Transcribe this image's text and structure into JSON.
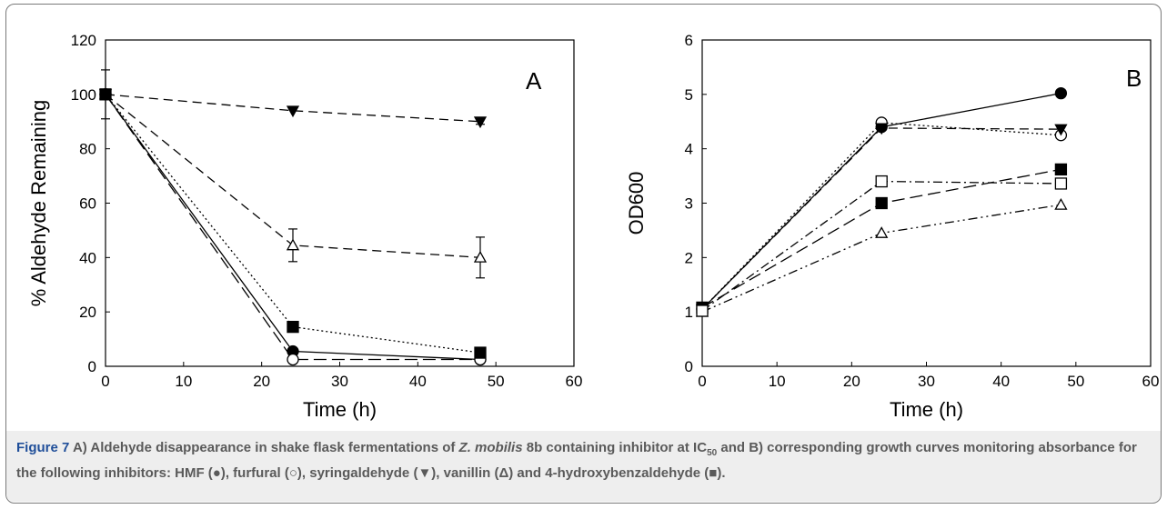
{
  "chart_data": [
    {
      "type": "line",
      "panel_label": "A",
      "xlabel": "Time (h)",
      "ylabel": "% Aldehyde Remaining",
      "xlim": [
        0,
        60
      ],
      "ylim": [
        0,
        120
      ],
      "xticks": [
        "0",
        "10",
        "20",
        "30",
        "40",
        "50",
        "60"
      ],
      "yticks": [
        "0",
        "20",
        "40",
        "60",
        "80",
        "100",
        "120"
      ],
      "grid": false,
      "x": [
        0,
        24,
        48
      ],
      "series": [
        {
          "marker": "filled-circle",
          "line": "solid",
          "values": [
            100,
            5.5,
            2.5
          ]
        },
        {
          "marker": "open-circle",
          "line": "long-dash",
          "values": [
            100,
            2.5,
            2.5
          ]
        },
        {
          "marker": "filled-triangle-down",
          "line": "dash",
          "values": [
            100,
            94,
            90
          ],
          "errors": [
            0,
            0,
            1
          ]
        },
        {
          "marker": "open-triangle",
          "line": "dash",
          "values": [
            100,
            44.5,
            40
          ],
          "errors": [
            9,
            6,
            7.5
          ]
        },
        {
          "marker": "filled-square",
          "line": "dot",
          "values": [
            100,
            14.5,
            5
          ]
        }
      ]
    },
    {
      "type": "line",
      "panel_label": "B",
      "xlabel": "Time (h)",
      "ylabel": "OD600",
      "xlim": [
        0,
        60
      ],
      "ylim": [
        0,
        6
      ],
      "xticks": [
        "0",
        "10",
        "20",
        "30",
        "40",
        "50",
        "60"
      ],
      "yticks": [
        "0",
        "1",
        "2",
        "3",
        "4",
        "5",
        "6"
      ],
      "grid": false,
      "x": [
        0,
        24,
        48
      ],
      "series": [
        {
          "marker": "filled-circle",
          "line": "solid",
          "values": [
            1.05,
            4.4,
            5.02
          ]
        },
        {
          "marker": "open-circle",
          "line": "dot",
          "values": [
            1.05,
            4.48,
            4.25
          ]
        },
        {
          "marker": "filled-triangle-down",
          "line": "dash",
          "values": [
            1.05,
            4.38,
            4.36
          ]
        },
        {
          "marker": "open-triangle",
          "line": "dash-dot-dot",
          "values": [
            1.0,
            2.45,
            2.97
          ]
        },
        {
          "marker": "filled-square",
          "line": "long-dash",
          "values": [
            1.08,
            3.0,
            3.62
          ]
        },
        {
          "marker": "open-square",
          "line": "dash-dot",
          "values": [
            1.02,
            3.4,
            3.36
          ]
        }
      ]
    }
  ],
  "caption": {
    "label": "Figure 7",
    "text_1": " A) Aldehyde disappearance in shake flask fermentations of ",
    "species": "Z. mobilis",
    "text_2": " 8b containing inhibitor at IC",
    "subscript": "50",
    "text_3": " and B) corresponding growth curves monitoring absorbance for the following inhibitors: HMF (●), furfural (○), syringaldehyde (▼), vanillin (Δ) and 4-hydroxybenzaldehyde (■)."
  },
  "colors": {
    "caption_label": "#1f4e99",
    "caption_text": "#5a5a5a",
    "caption_band": "#eeeeee",
    "plot_ink": "#000000"
  }
}
